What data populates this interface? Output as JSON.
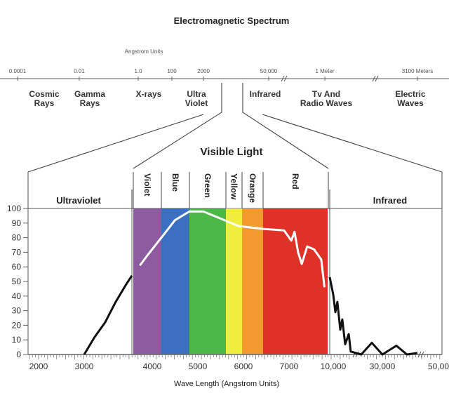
{
  "title": "Electromagnetic Spectrum",
  "scale_unit_label": "Angstrom Units",
  "spectrum_ticks": [
    "0.0001",
    "0.01",
    "1.0",
    "100",
    "2000",
    "50,000",
    "1 Meter",
    "3100 Meters"
  ],
  "spectrum_regions": [
    {
      "line1": "Cosmic",
      "line2": "Rays"
    },
    {
      "line1": "Gamma",
      "line2": "Rays"
    },
    {
      "line1": "X-rays",
      "line2": ""
    },
    {
      "line1": "Ultra",
      "line2": "Violet"
    },
    {
      "line1": "Infrared",
      "line2": ""
    },
    {
      "line1": "Tv And",
      "line2": "Radio Waves"
    },
    {
      "line1": "Electric",
      "line2": "Waves"
    }
  ],
  "visible_title": "Visible Light",
  "panels": {
    "left": "Ultraviolet",
    "right": "Infrared"
  },
  "bands": [
    {
      "name": "Violet",
      "color": "#8d5b9f"
    },
    {
      "name": "Blue",
      "color": "#3b6fc1"
    },
    {
      "name": "Green",
      "color": "#4cb847"
    },
    {
      "name": "Yellow",
      "color": "#f1ee3b"
    },
    {
      "name": "Orange",
      "color": "#f39a2f"
    },
    {
      "name": "Red",
      "color": "#df3128"
    }
  ],
  "chart_data": {
    "type": "line",
    "xlabel": "Wave Length (Angstrom Units)",
    "ylabel": "",
    "ylim": [
      0,
      100
    ],
    "yticks": [
      "0",
      "10",
      "20",
      "30",
      "40",
      "50",
      "60",
      "70",
      "80",
      "90",
      "100"
    ],
    "xticks": [
      "2000",
      "3000",
      "4000",
      "5000",
      "6000",
      "7000",
      "10,000",
      "30,000",
      "50,00"
    ],
    "series": [
      {
        "segment": "ultraviolet",
        "color": "#111111",
        "points": [
          [
            3000,
            0
          ],
          [
            3230,
            12
          ],
          [
            3460,
            22
          ],
          [
            3690,
            36
          ],
          [
            3920,
            48
          ],
          [
            4046,
            54
          ]
        ]
      },
      {
        "segment": "visible",
        "color": "#ffffff",
        "points": [
          [
            3740,
            61
          ],
          [
            3900,
            68
          ],
          [
            4200,
            80
          ],
          [
            4500,
            92
          ],
          [
            4815,
            98
          ],
          [
            5120,
            98
          ],
          [
            5430,
            94
          ],
          [
            5890,
            88
          ],
          [
            6430,
            86
          ],
          [
            6890,
            85
          ],
          [
            7050,
            78
          ],
          [
            7120,
            84
          ],
          [
            7200,
            70
          ],
          [
            7280,
            62
          ],
          [
            7400,
            74
          ],
          [
            7550,
            72
          ],
          [
            7710,
            65
          ],
          [
            7780,
            46
          ]
        ]
      },
      {
        "segment": "infrared",
        "color": "#111111",
        "points": [
          [
            7900,
            53
          ],
          [
            10000,
            41
          ],
          [
            10860,
            29
          ],
          [
            11700,
            36
          ],
          [
            12860,
            17
          ],
          [
            13700,
            24
          ],
          [
            14860,
            7
          ],
          [
            16300,
            14
          ],
          [
            17100,
            2
          ],
          [
            21400,
            0
          ],
          [
            25700,
            8
          ],
          [
            30000,
            0
          ],
          [
            35000,
            6
          ],
          [
            38750,
            0
          ],
          [
            42500,
            1
          ]
        ]
      }
    ]
  }
}
